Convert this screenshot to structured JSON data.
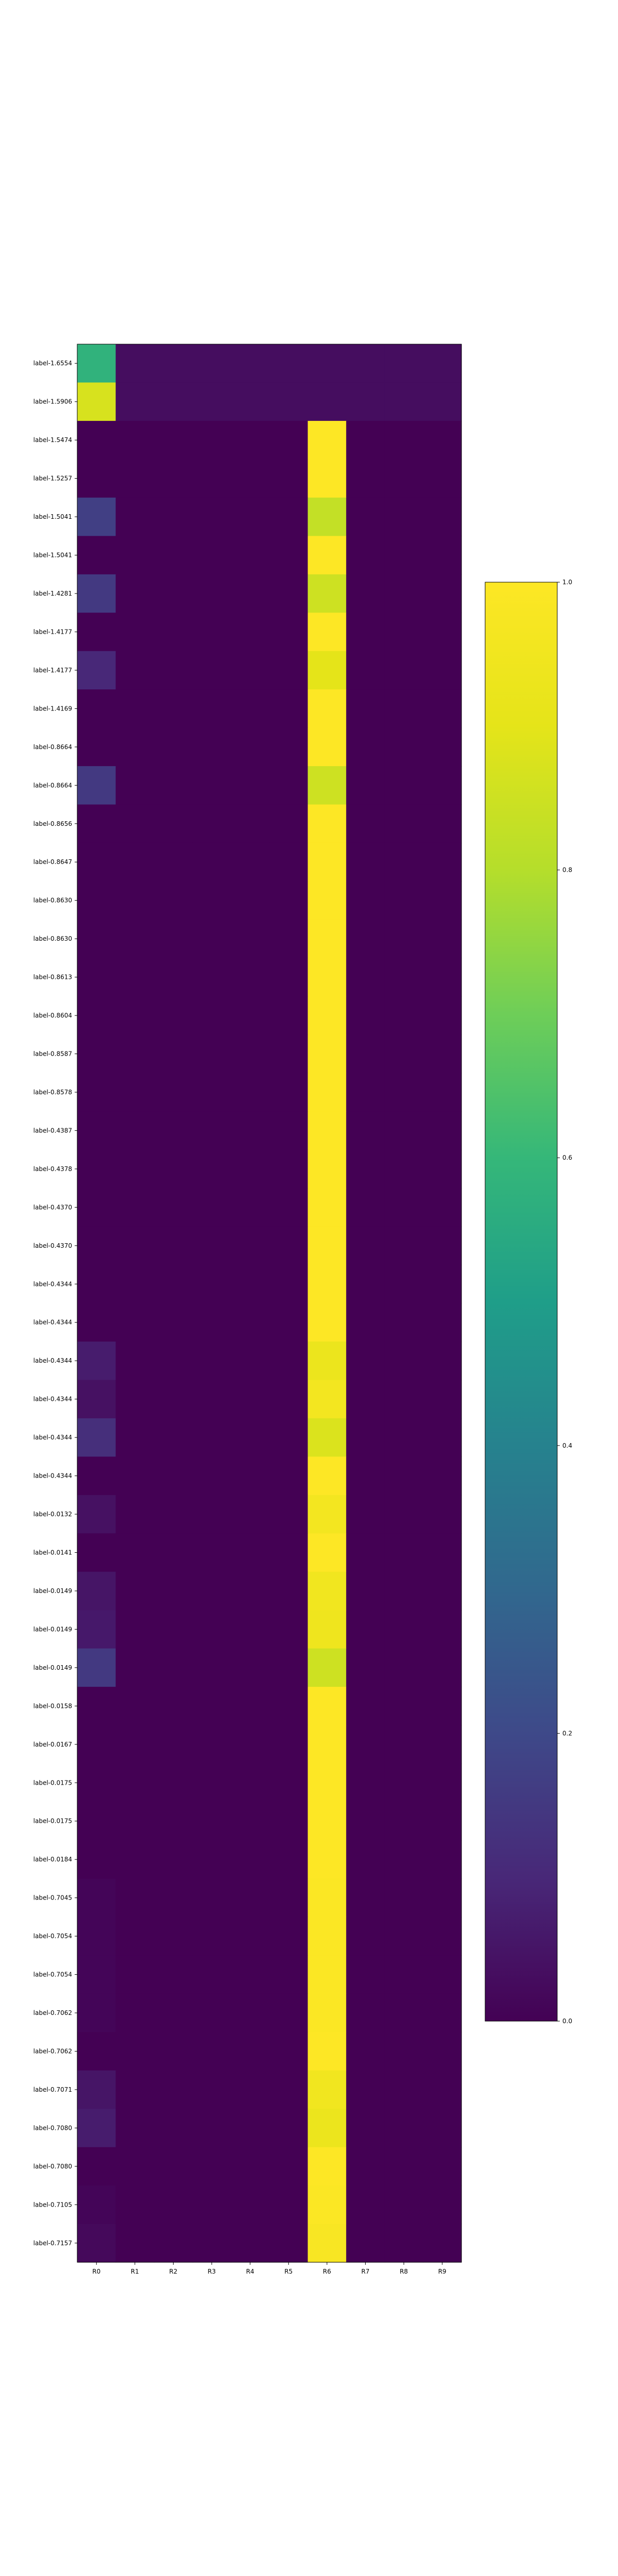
{
  "chart_data": {
    "type": "heatmap",
    "columns": [
      "R0",
      "R1",
      "R2",
      "R3",
      "R4",
      "R5",
      "R6",
      "R7",
      "R8",
      "R9"
    ],
    "rows": [
      "label-1.6554",
      "label-1.5906",
      "label-1.5474",
      "label-1.5257",
      "label-1.5041",
      "label-1.5041",
      "label-1.4281",
      "label-1.4177",
      "label-1.4177",
      "label-1.4169",
      "label-0.8664",
      "label-0.8664",
      "label-0.8656",
      "label-0.8647",
      "label-0.8630",
      "label-0.8630",
      "label-0.8613",
      "label-0.8604",
      "label-0.8587",
      "label-0.8578",
      "label-0.4387",
      "label-0.4378",
      "label-0.4370",
      "label-0.4370",
      "label-0.4344",
      "label-0.4344",
      "label-0.4344",
      "label-0.4344",
      "label-0.4344",
      "label-0.4344",
      "label-0.0132",
      "label-0.0141",
      "label-0.0149",
      "label-0.0149",
      "label-0.0149",
      "label-0.0158",
      "label-0.0167",
      "label-0.0175",
      "label-0.0175",
      "label-0.0184",
      "label-0.7045",
      "label-0.7054",
      "label-0.7054",
      "label-0.7062",
      "label-0.7062",
      "label-0.7071",
      "label-0.7080",
      "label-0.7080",
      "label-0.7105",
      "label-0.7157"
    ],
    "values": [
      [
        0.58,
        0.03,
        0.03,
        0.03,
        0.03,
        0.03,
        0.03,
        0.03,
        0.03,
        0.03
      ],
      [
        0.87,
        0.03,
        0.03,
        0.03,
        0.03,
        0.03,
        0.03,
        0.03,
        0.03,
        0.03
      ],
      [
        0.0,
        0.0,
        0.0,
        0.0,
        0.0,
        0.0,
        1.0,
        0.0,
        0.0,
        0.0
      ],
      [
        0.0,
        0.0,
        0.0,
        0.0,
        0.0,
        0.0,
        1.0,
        0.0,
        0.0,
        0.0
      ],
      [
        0.17,
        0.0,
        0.0,
        0.0,
        0.0,
        0.0,
        0.83,
        0.0,
        0.0,
        0.0
      ],
      [
        0.0,
        0.0,
        0.0,
        0.0,
        0.0,
        0.0,
        1.0,
        0.0,
        0.0,
        0.0
      ],
      [
        0.15,
        0.0,
        0.0,
        0.0,
        0.0,
        0.0,
        0.85,
        0.0,
        0.0,
        0.0
      ],
      [
        0.0,
        0.0,
        0.0,
        0.0,
        0.0,
        0.0,
        1.0,
        0.0,
        0.0,
        0.0
      ],
      [
        0.1,
        0.0,
        0.0,
        0.0,
        0.0,
        0.0,
        0.9,
        0.0,
        0.0,
        0.0
      ],
      [
        0.0,
        0.0,
        0.0,
        0.0,
        0.0,
        0.0,
        1.0,
        0.0,
        0.0,
        0.0
      ],
      [
        0.0,
        0.0,
        0.0,
        0.0,
        0.0,
        0.0,
        1.0,
        0.0,
        0.0,
        0.0
      ],
      [
        0.15,
        0.0,
        0.0,
        0.0,
        0.0,
        0.0,
        0.85,
        0.0,
        0.0,
        0.0
      ],
      [
        0.0,
        0.0,
        0.0,
        0.0,
        0.0,
        0.0,
        1.0,
        0.0,
        0.0,
        0.0
      ],
      [
        0.0,
        0.0,
        0.0,
        0.0,
        0.0,
        0.0,
        1.0,
        0.0,
        0.0,
        0.0
      ],
      [
        0.0,
        0.0,
        0.0,
        0.0,
        0.0,
        0.0,
        1.0,
        0.0,
        0.0,
        0.0
      ],
      [
        0.0,
        0.0,
        0.0,
        0.0,
        0.0,
        0.0,
        1.0,
        0.0,
        0.0,
        0.0
      ],
      [
        0.0,
        0.0,
        0.0,
        0.0,
        0.0,
        0.0,
        1.0,
        0.0,
        0.0,
        0.0
      ],
      [
        0.0,
        0.0,
        0.0,
        0.0,
        0.0,
        0.0,
        1.0,
        0.0,
        0.0,
        0.0
      ],
      [
        0.0,
        0.0,
        0.0,
        0.0,
        0.0,
        0.0,
        1.0,
        0.0,
        0.0,
        0.0
      ],
      [
        0.0,
        0.0,
        0.0,
        0.0,
        0.0,
        0.0,
        1.0,
        0.0,
        0.0,
        0.0
      ],
      [
        0.0,
        0.0,
        0.0,
        0.0,
        0.0,
        0.0,
        1.0,
        0.0,
        0.0,
        0.0
      ],
      [
        0.0,
        0.0,
        0.0,
        0.0,
        0.0,
        0.0,
        1.0,
        0.0,
        0.0,
        0.0
      ],
      [
        0.0,
        0.0,
        0.0,
        0.0,
        0.0,
        0.0,
        1.0,
        0.0,
        0.0,
        0.0
      ],
      [
        0.0,
        0.0,
        0.0,
        0.0,
        0.0,
        0.0,
        1.0,
        0.0,
        0.0,
        0.0
      ],
      [
        0.0,
        0.0,
        0.0,
        0.0,
        0.0,
        0.0,
        1.0,
        0.0,
        0.0,
        0.0
      ],
      [
        0.0,
        0.0,
        0.0,
        0.0,
        0.0,
        0.0,
        1.0,
        0.0,
        0.0,
        0.0
      ],
      [
        0.07,
        0.0,
        0.0,
        0.0,
        0.0,
        0.0,
        0.93,
        0.0,
        0.0,
        0.0
      ],
      [
        0.04,
        0.0,
        0.0,
        0.0,
        0.0,
        0.0,
        0.96,
        0.0,
        0.0,
        0.0
      ],
      [
        0.12,
        0.0,
        0.0,
        0.0,
        0.0,
        0.0,
        0.88,
        0.0,
        0.0,
        0.0
      ],
      [
        0.0,
        0.0,
        0.0,
        0.0,
        0.0,
        0.0,
        1.0,
        0.0,
        0.0,
        0.0
      ],
      [
        0.04,
        0.0,
        0.0,
        0.0,
        0.0,
        0.0,
        0.96,
        0.0,
        0.0,
        0.0
      ],
      [
        0.0,
        0.0,
        0.0,
        0.0,
        0.0,
        0.0,
        1.0,
        0.0,
        0.0,
        0.0
      ],
      [
        0.05,
        0.0,
        0.0,
        0.0,
        0.0,
        0.0,
        0.95,
        0.0,
        0.0,
        0.0
      ],
      [
        0.06,
        0.0,
        0.0,
        0.0,
        0.0,
        0.0,
        0.94,
        0.0,
        0.0,
        0.0
      ],
      [
        0.15,
        0.0,
        0.0,
        0.0,
        0.0,
        0.0,
        0.85,
        0.0,
        0.0,
        0.0
      ],
      [
        0.0,
        0.0,
        0.0,
        0.0,
        0.0,
        0.0,
        1.0,
        0.0,
        0.0,
        0.0
      ],
      [
        0.0,
        0.0,
        0.0,
        0.0,
        0.0,
        0.0,
        1.0,
        0.0,
        0.0,
        0.0
      ],
      [
        0.0,
        0.0,
        0.0,
        0.0,
        0.0,
        0.0,
        1.0,
        0.0,
        0.0,
        0.0
      ],
      [
        0.0,
        0.0,
        0.0,
        0.0,
        0.0,
        0.0,
        1.0,
        0.0,
        0.0,
        0.0
      ],
      [
        0.0,
        0.0,
        0.0,
        0.0,
        0.0,
        0.0,
        1.0,
        0.0,
        0.0,
        0.0
      ],
      [
        0.01,
        0.0,
        0.0,
        0.0,
        0.0,
        0.0,
        0.99,
        0.0,
        0.0,
        0.0
      ],
      [
        0.01,
        0.0,
        0.0,
        0.0,
        0.0,
        0.0,
        0.99,
        0.0,
        0.0,
        0.0
      ],
      [
        0.01,
        0.0,
        0.0,
        0.0,
        0.0,
        0.0,
        0.99,
        0.0,
        0.0,
        0.0
      ],
      [
        0.01,
        0.0,
        0.0,
        0.0,
        0.0,
        0.0,
        0.99,
        0.0,
        0.0,
        0.0
      ],
      [
        0.0,
        0.0,
        0.0,
        0.0,
        0.0,
        0.0,
        1.0,
        0.0,
        0.0,
        0.0
      ],
      [
        0.05,
        0.0,
        0.0,
        0.0,
        0.0,
        0.0,
        0.95,
        0.0,
        0.0,
        0.0
      ],
      [
        0.07,
        0.0,
        0.0,
        0.0,
        0.0,
        0.0,
        0.93,
        0.0,
        0.0,
        0.0
      ],
      [
        0.0,
        0.0,
        0.0,
        0.0,
        0.0,
        0.0,
        1.0,
        0.0,
        0.0,
        0.0
      ],
      [
        0.01,
        0.0,
        0.0,
        0.0,
        0.0,
        0.0,
        0.99,
        0.0,
        0.0,
        0.0
      ],
      [
        0.02,
        0.0,
        0.0,
        0.0,
        0.0,
        0.0,
        0.98,
        0.0,
        0.0,
        0.0
      ]
    ],
    "colormap": "viridis",
    "vmin": 0.0,
    "vmax": 1.0,
    "colorbar_ticks": [
      "0.0",
      "0.2",
      "0.4",
      "0.6",
      "0.8",
      "1.0"
    ],
    "colorbar_tick_values": [
      0.0,
      0.2,
      0.4,
      0.6,
      0.8,
      1.0
    ],
    "title": "",
    "xlabel": "",
    "ylabel": ""
  }
}
